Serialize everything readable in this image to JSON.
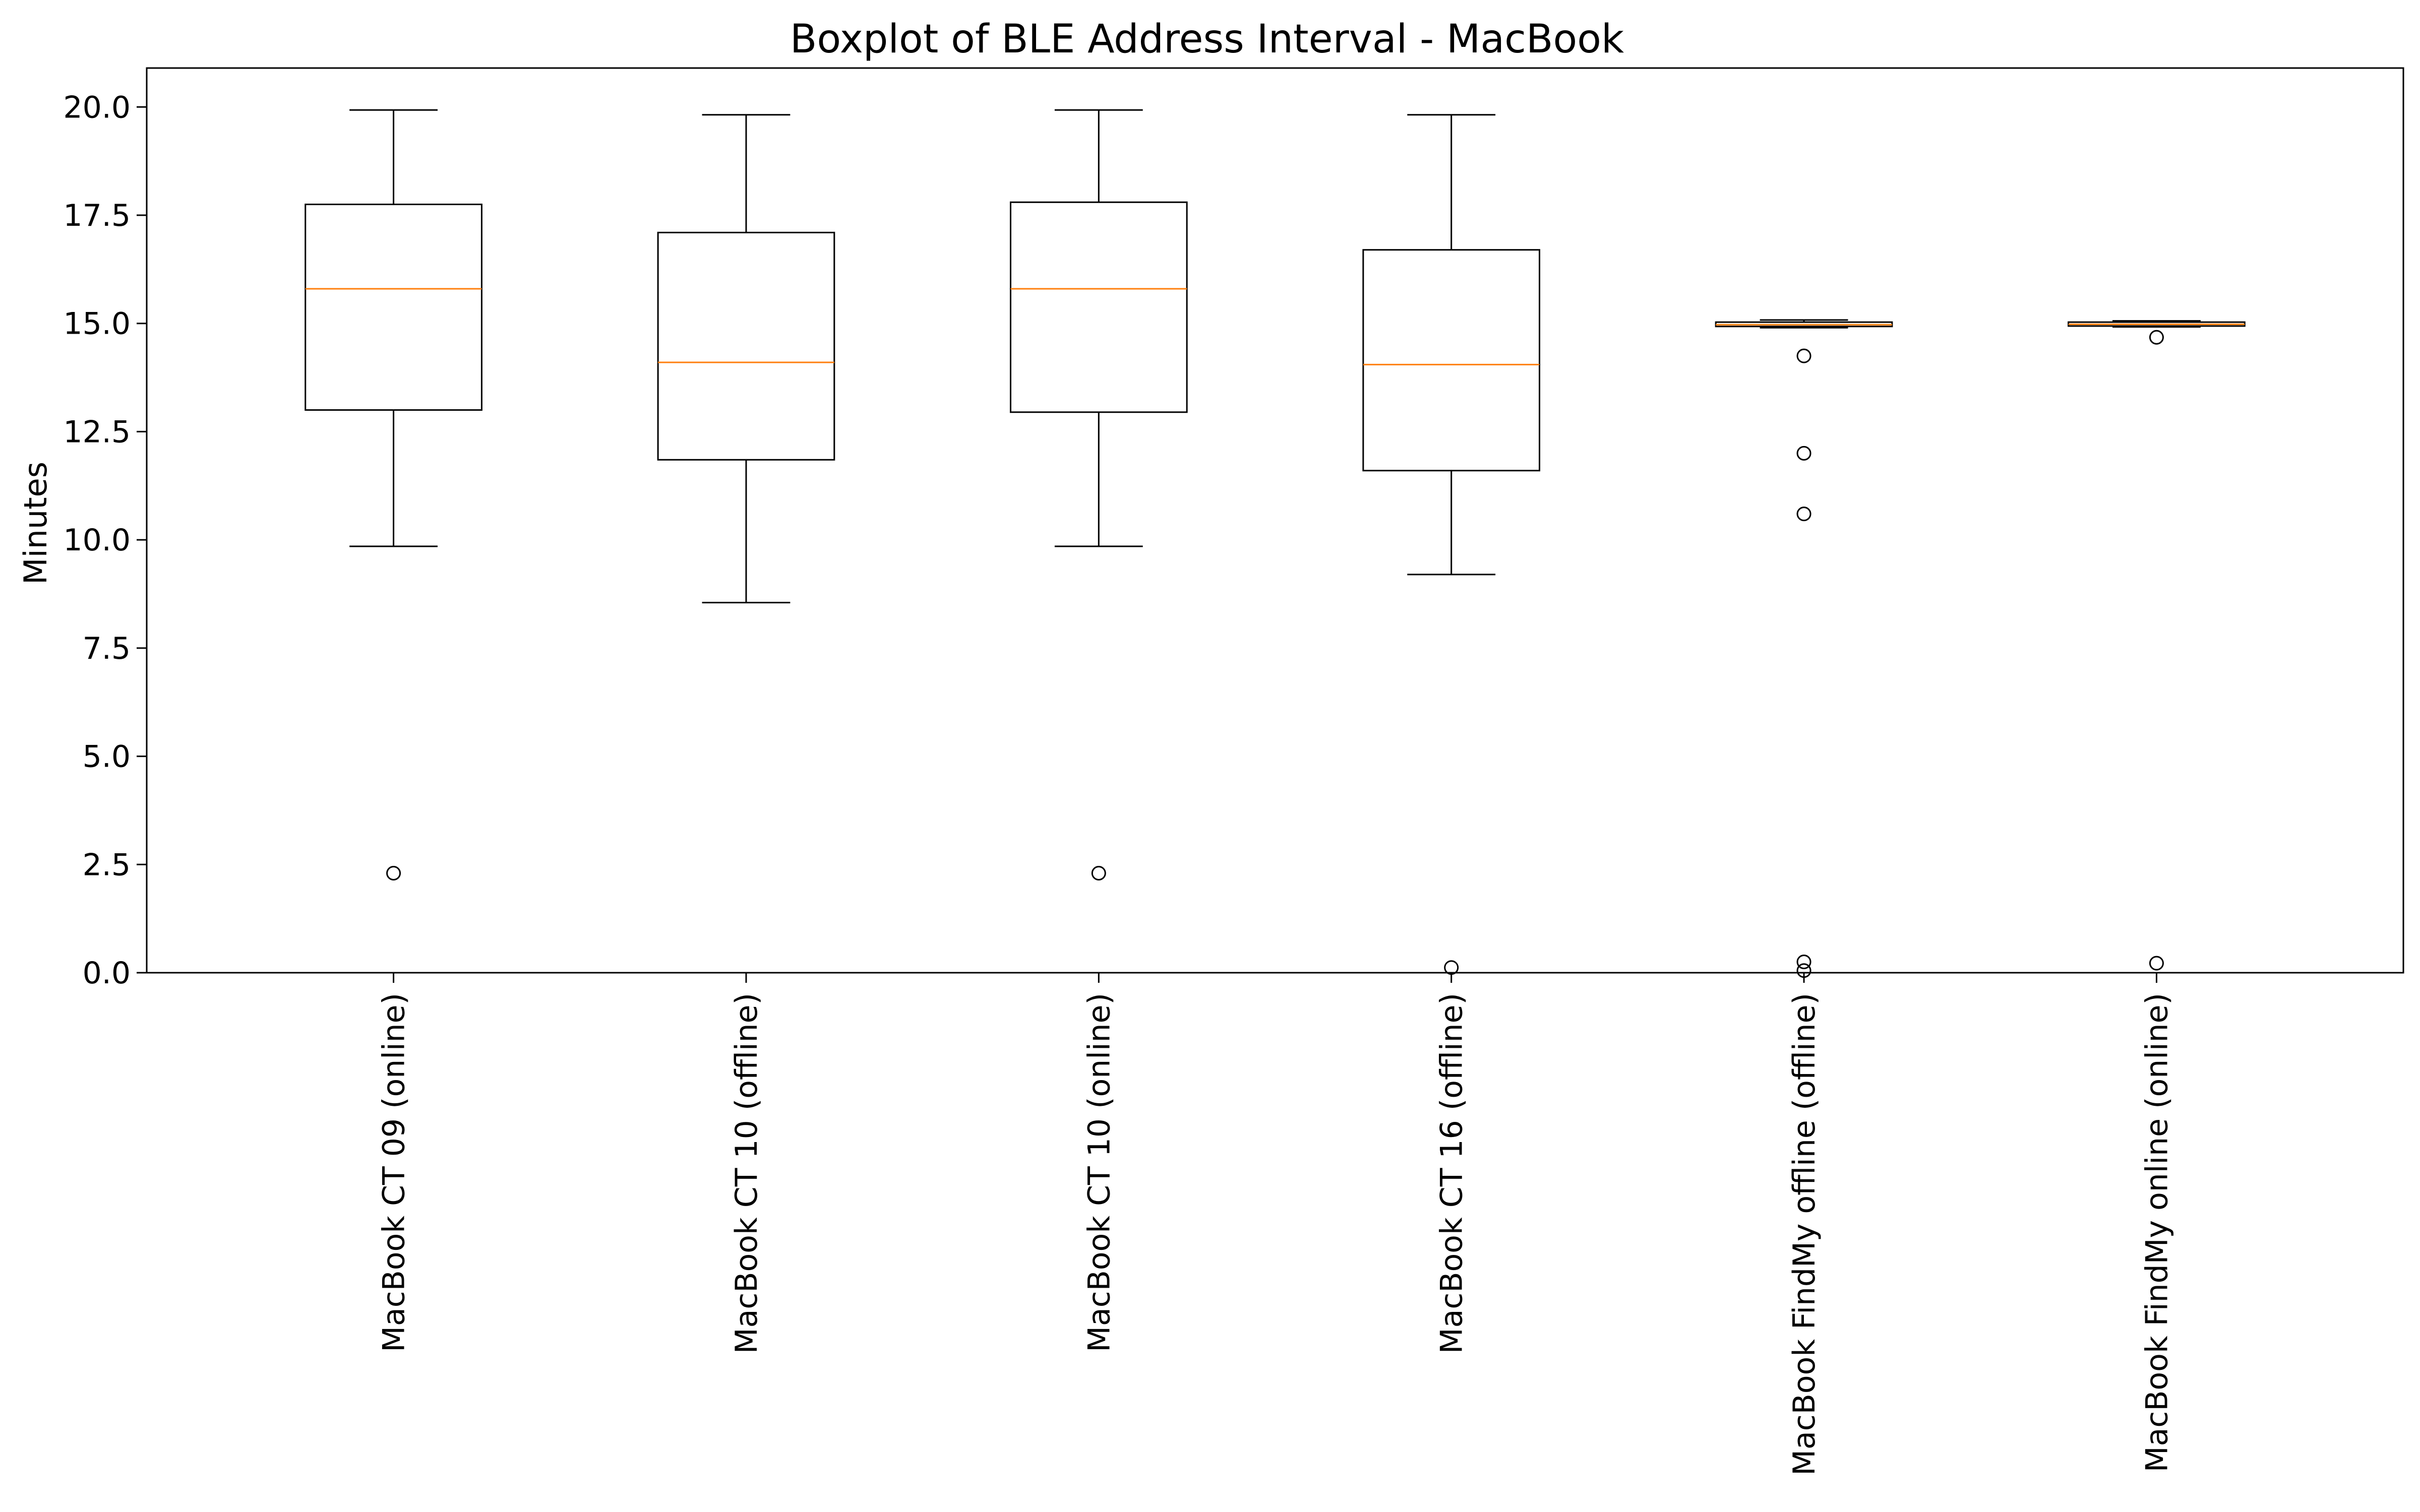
{
  "chart_data": {
    "type": "boxplot",
    "title": "Boxplot of BLE Address Interval - MacBook",
    "xlabel": "",
    "ylabel": "Minutes",
    "ylim": [
      0,
      20.9
    ],
    "yticks": [
      0.0,
      2.5,
      5.0,
      7.5,
      10.0,
      12.5,
      15.0,
      17.5,
      20.0
    ],
    "ytick_labels": [
      "0.0",
      "2.5",
      "5.0",
      "7.5",
      "10.0",
      "12.5",
      "15.0",
      "17.5",
      "20.0"
    ],
    "grid": false,
    "categories": [
      "MacBook CT 09 (online)",
      "MacBook CT 10 (offline)",
      "MacBook CT 10 (online)",
      "MacBook CT 16 (offline)",
      "MacBook FindMy offline (offline)",
      "MacBook FindMy online (online)"
    ],
    "boxes": [
      {
        "whisker_low": 9.85,
        "q1": 13.0,
        "median": 15.8,
        "q3": 17.75,
        "whisker_high": 19.93,
        "outliers": [
          2.3
        ]
      },
      {
        "whisker_low": 8.55,
        "q1": 11.85,
        "median": 14.1,
        "q3": 17.1,
        "whisker_high": 19.82,
        "outliers": []
      },
      {
        "whisker_low": 9.85,
        "q1": 12.95,
        "median": 15.8,
        "q3": 17.8,
        "whisker_high": 19.93,
        "outliers": [
          2.3
        ]
      },
      {
        "whisker_low": 9.2,
        "q1": 11.6,
        "median": 14.05,
        "q3": 16.7,
        "whisker_high": 19.82,
        "outliers": [
          0.12
        ]
      },
      {
        "whisker_low": 14.9,
        "q1": 14.93,
        "median": 14.97,
        "q3": 15.03,
        "whisker_high": 15.08,
        "outliers": [
          14.25,
          12.0,
          10.6,
          0.25,
          0.05
        ]
      },
      {
        "whisker_low": 14.92,
        "q1": 14.94,
        "median": 14.98,
        "q3": 15.03,
        "whisker_high": 15.06,
        "outliers": [
          14.68,
          0.22
        ]
      }
    ],
    "colors": {
      "box": "#000000",
      "median": "#ff7f0e",
      "outlier": "#000000"
    }
  }
}
